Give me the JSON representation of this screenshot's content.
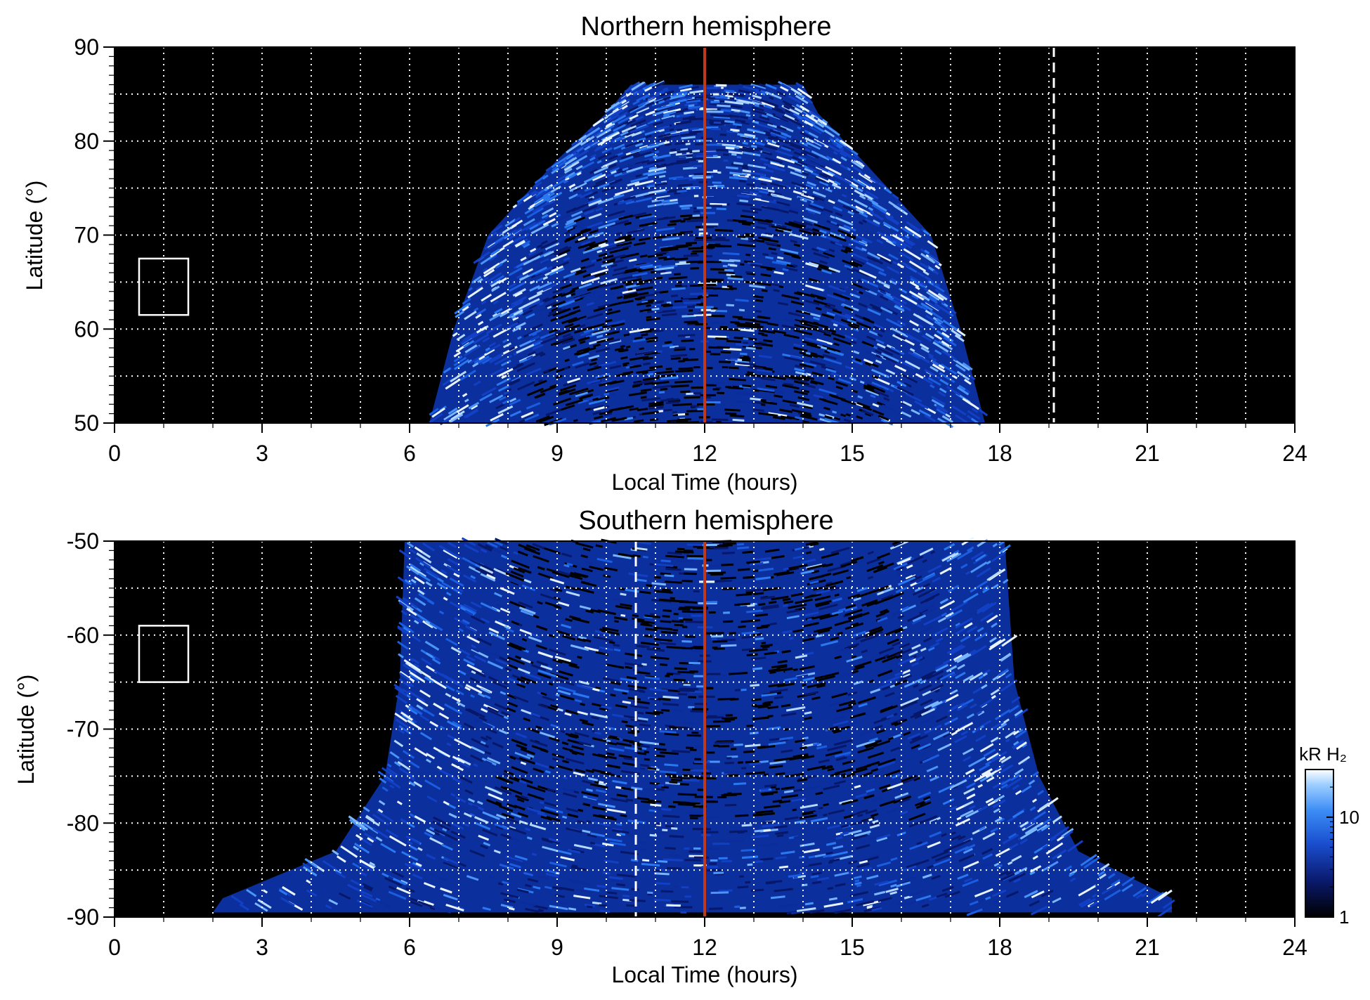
{
  "chart_data": [
    {
      "type": "heatmap",
      "title": "Northern hemisphere",
      "xlabel": "Local Time (hours)",
      "ylabel": "Latitude (°)",
      "xlim": [
        0,
        24
      ],
      "ylim": [
        50,
        90
      ],
      "xticks": [
        0,
        3,
        6,
        9,
        12,
        15,
        18,
        21,
        24
      ],
      "xtick_labels": [
        "0",
        "3",
        "6",
        "9",
        "12",
        "15",
        "18",
        "21",
        "24"
      ],
      "yticks": [
        50,
        60,
        70,
        80,
        90
      ],
      "ytick_labels": [
        "50",
        "60",
        "70",
        "80",
        "90"
      ],
      "grid": true,
      "grid_x_step": 1,
      "grid_y_step": 5,
      "vlines": [
        {
          "x": 12,
          "style": "solid",
          "color": "#c0391b"
        },
        {
          "x": 19.1,
          "style": "dashed",
          "color": "#ffffff"
        }
      ],
      "region": {
        "lt_start": [
          6.4,
          6.9,
          7.6,
          9.0,
          10.0,
          10.5
        ],
        "lt_end": [
          17.7,
          17.2,
          16.6,
          15.2,
          14.3,
          14.0
        ],
        "lat": [
          50,
          60,
          70,
          78,
          83,
          86
        ]
      },
      "box": {
        "x": [
          0.5,
          1.5
        ],
        "y": [
          61.5,
          67.5
        ]
      }
    },
    {
      "type": "heatmap",
      "title": "Southern hemisphere",
      "xlabel": "Local Time (hours)",
      "ylabel": "Latitude (°)",
      "xlim": [
        0,
        24
      ],
      "ylim": [
        -90,
        -50
      ],
      "xticks": [
        0,
        3,
        6,
        9,
        12,
        15,
        18,
        21,
        24
      ],
      "xtick_labels": [
        "0",
        "3",
        "6",
        "9",
        "12",
        "15",
        "18",
        "21",
        "24"
      ],
      "yticks": [
        -90,
        -80,
        -70,
        -60,
        -50
      ],
      "ytick_labels": [
        "-90",
        "-80",
        "-70",
        "-60",
        "-50"
      ],
      "grid": true,
      "grid_x_step": 1,
      "grid_y_step": 5,
      "vlines": [
        {
          "x": 12,
          "style": "solid",
          "color": "#c0391b"
        },
        {
          "x": 10.6,
          "style": "dashed",
          "color": "#ffffff"
        }
      ],
      "region": {
        "lt_start": [
          5.9,
          5.8,
          5.5,
          4.5,
          2.2,
          2.0
        ],
        "lt_end": [
          18.1,
          18.3,
          18.8,
          19.6,
          21.5,
          21.5
        ],
        "lat": [
          -50,
          -65,
          -75,
          -83,
          -88,
          -89.5
        ]
      },
      "box": {
        "x": [
          0.5,
          1.5
        ],
        "y": [
          -65,
          -59
        ]
      }
    }
  ],
  "colorbar": {
    "label": "kR H₂",
    "ticks": [
      1,
      10
    ],
    "tick_labels": [
      "1",
      "10"
    ],
    "range": [
      1,
      30
    ],
    "scale": "log",
    "colors": [
      "#000000",
      "#0a1a6e",
      "#1a4fd0",
      "#3b8cf5",
      "#9fd0ff",
      "#ffffff"
    ]
  },
  "colors": {
    "background": "#000000",
    "emission_low": "#0a2a8a",
    "emission_mid": "#1f6fe8",
    "emission_high": "#e6f3ff",
    "noon_line": "#c0391b"
  }
}
